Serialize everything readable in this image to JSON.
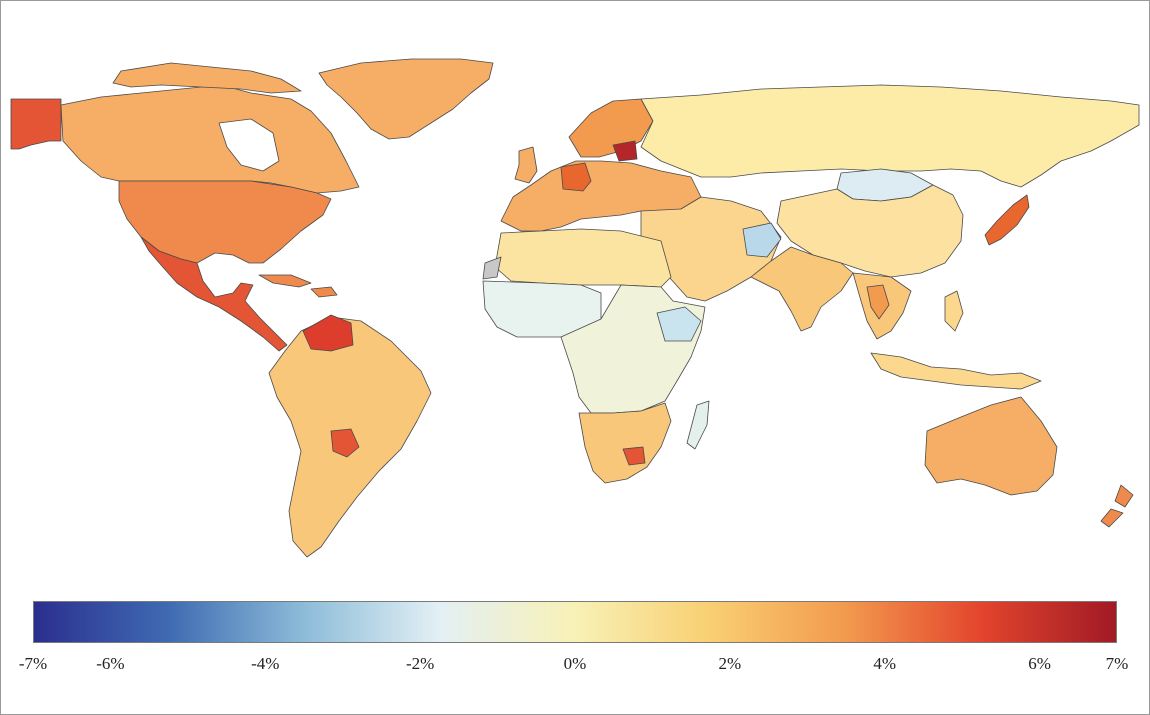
{
  "legend": {
    "ticks": [
      {
        "label": "-7%",
        "value": -7
      },
      {
        "label": "-6%",
        "value": -6
      },
      {
        "label": "-4%",
        "value": -4
      },
      {
        "label": "-2%",
        "value": -2
      },
      {
        "label": "0%",
        "value": 0
      },
      {
        "label": "2%",
        "value": 2
      },
      {
        "label": "4%",
        "value": 4
      },
      {
        "label": "6%",
        "value": 6
      },
      {
        "label": "7%",
        "value": 7
      }
    ],
    "range": [
      -7,
      7
    ],
    "colormap": [
      "#2b2f8f",
      "#3f6bb2",
      "#8dbcd9",
      "#e3f0f4",
      "#f8f1b6",
      "#f9cf72",
      "#f29a4e",
      "#e3452d",
      "#a11a25"
    ]
  },
  "regions": {
    "alaska": {
      "color": "#e35534"
    },
    "canada": {
      "color": "#f6ad65"
    },
    "greenland": {
      "color": "#f6ad65"
    },
    "usa": {
      "color": "#ef8a4c"
    },
    "mexico_central_america": {
      "color": "#e35534"
    },
    "caribbean": {
      "color": "#ef8a4c"
    },
    "south_america": {
      "color": "#f8c77a"
    },
    "venezuela": {
      "color": "#dd3d2c"
    },
    "paraguay": {
      "color": "#e35534"
    },
    "europe": {
      "color": "#f6ad65"
    },
    "germany": {
      "color": "#e8672e"
    },
    "nordic": {
      "color": "#f29a4e"
    },
    "baltics": {
      "color": "#b3262a"
    },
    "russia": {
      "color": "#fdeca8"
    },
    "middle_east": {
      "color": "#fbd58e"
    },
    "north_africa": {
      "color": "#fbe4a1"
    },
    "west_africa": {
      "color": "#e8f2ee"
    },
    "central_africa": {
      "color": "#f0f3d9"
    },
    "ethiopia": {
      "color": "#c9e3ef"
    },
    "southern_africa": {
      "color": "#f8c77a"
    },
    "south_africa_inner": {
      "color": "#e35534"
    },
    "madagascar": {
      "color": "#e3f0ec"
    },
    "mongolia": {
      "color": "#dcecf2"
    },
    "afghanistan": {
      "color": "#b9d8ea"
    },
    "china": {
      "color": "#fce1a0"
    },
    "india": {
      "color": "#f8c77a"
    },
    "southeast_asia": {
      "color": "#f8c77a"
    },
    "thailand": {
      "color": "#f29a4e"
    },
    "japan": {
      "color": "#e8672e"
    },
    "indonesia": {
      "color": "#fcd88e"
    },
    "australia": {
      "color": "#f6ad65"
    },
    "new_zealand": {
      "color": "#ef8a4c"
    },
    "no_data": {
      "color": "#c8c8c8"
    }
  }
}
